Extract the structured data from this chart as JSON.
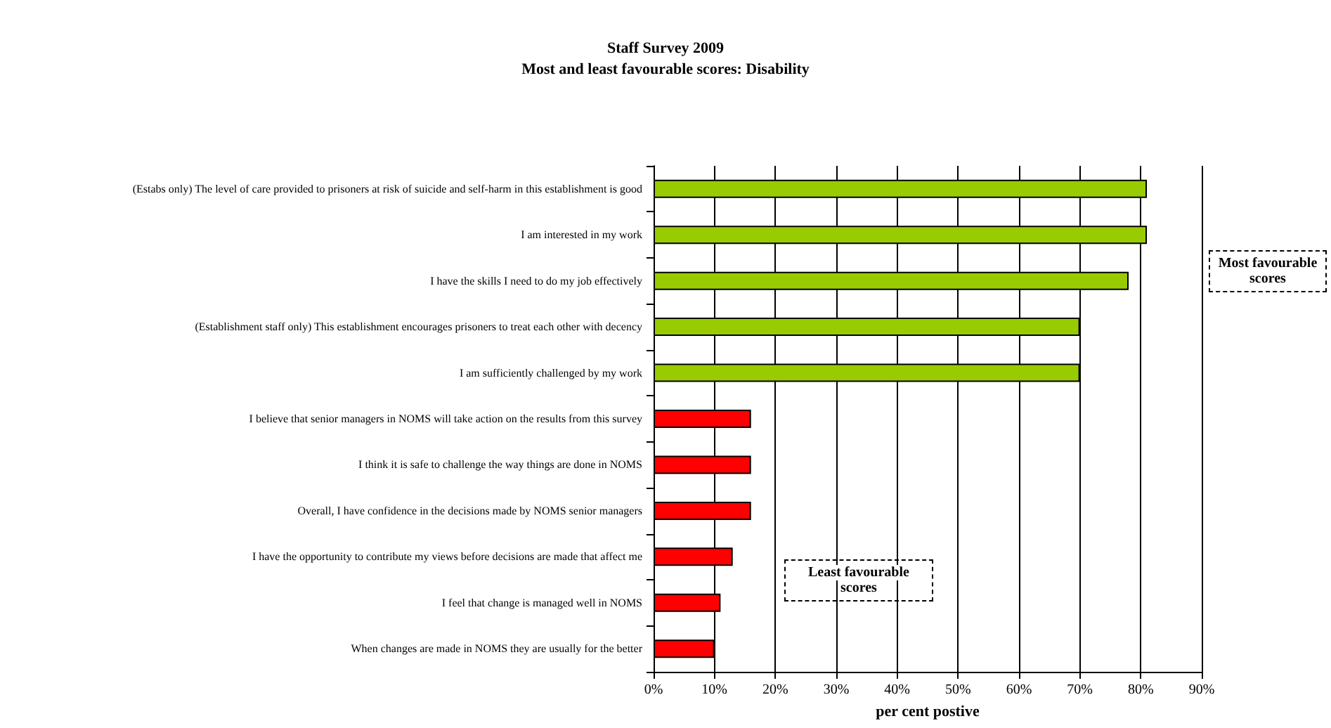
{
  "chart_data": {
    "type": "bar",
    "orientation": "horizontal",
    "title": "Staff Survey 2009",
    "subtitle": "Most and least favourable scores: Disability",
    "xlabel": "per cent postive",
    "categories": [
      "(Estabs only) The level of care provided to prisoners at risk of suicide and self-harm in this establishment is good",
      "I am interested in my work",
      "I have the skills I need to do my job effectively",
      "(Establishment staff only) This establishment encourages prisoners to treat each other with decency",
      "I am sufficiently challenged by my work",
      "I believe that senior managers in NOMS will take action on the results from this survey",
      "I think it is safe to challenge the way things are done in NOMS",
      "Overall, I have confidence in the decisions made by NOMS senior managers",
      "I have the opportunity to contribute my views before decisions are made that affect me",
      "I feel that change is managed well in NOMS",
      "When changes are made in NOMS they are usually for the better"
    ],
    "values": [
      81,
      81,
      78,
      70,
      70,
      16,
      16,
      16,
      13,
      11,
      10
    ],
    "colors": [
      "#99cc00",
      "#99cc00",
      "#99cc00",
      "#99cc00",
      "#99cc00",
      "#ff0000",
      "#ff0000",
      "#ff0000",
      "#ff0000",
      "#ff0000",
      "#ff0000"
    ],
    "xlim": [
      0,
      90
    ],
    "xticks": [
      {
        "value": 0,
        "label": "0%"
      },
      {
        "value": 10,
        "label": "10%"
      },
      {
        "value": 20,
        "label": "20%"
      },
      {
        "value": 30,
        "label": "30%"
      },
      {
        "value": 40,
        "label": "40%"
      },
      {
        "value": 50,
        "label": "50%"
      },
      {
        "value": 60,
        "label": "60%"
      },
      {
        "value": 70,
        "label": "70%"
      },
      {
        "value": 80,
        "label": "80%"
      },
      {
        "value": 90,
        "label": "90%"
      }
    ],
    "grid": "x",
    "annotations": [
      "Most favourable scores",
      "Least favourable scores"
    ]
  }
}
